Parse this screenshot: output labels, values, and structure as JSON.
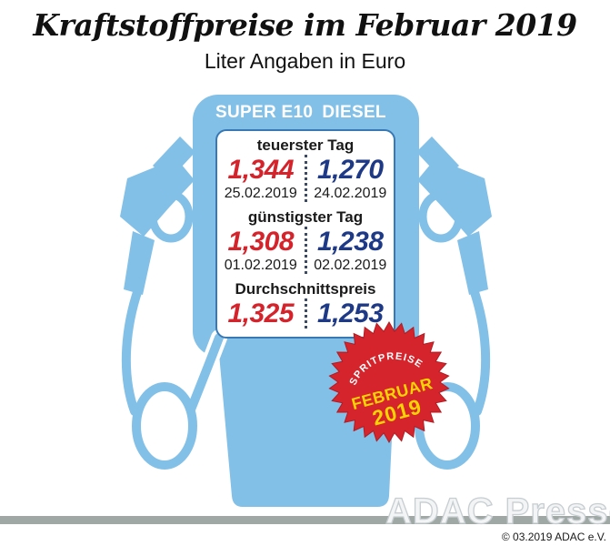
{
  "header": {
    "title": "Kraftstoffpreise im Februar 2019",
    "subtitle": "Liter Angaben in Euro"
  },
  "pump": {
    "fuel_columns": [
      "SUPER E10",
      "DIESEL"
    ],
    "sections": [
      {
        "label": "teuerster Tag",
        "values": [
          {
            "price": "1,344",
            "date": "25.02.2019"
          },
          {
            "price": "1,270",
            "date": "24.02.2019"
          }
        ]
      },
      {
        "label": "günstigster Tag",
        "values": [
          {
            "price": "1,308",
            "date": "01.02.2019"
          },
          {
            "price": "1,238",
            "date": "02.02.2019"
          }
        ]
      },
      {
        "label": "Durchschnittspreis",
        "values": [
          {
            "price": "1,325"
          },
          {
            "price": "1,253"
          }
        ]
      }
    ]
  },
  "badge": {
    "top": "SPRITPREISE",
    "middle": "FEBRUAR",
    "year": "2019"
  },
  "footer": {
    "watermark": "ADAC Presse",
    "copyright": "© 03.2019 ADAC e.V."
  },
  "colors": {
    "pump_blue": "#82C0E8",
    "panel_border": "#3878B4",
    "price_super_e10": "#D5232B",
    "price_diesel": "#1E3A86",
    "badge_red": "#D6242C",
    "badge_yellow": "#FFD402",
    "bar_gray": "#9FA8A4"
  },
  "chart_data": {
    "type": "table",
    "title": "Kraftstoffpreise im Februar 2019 (Liter Angaben in Euro)",
    "columns": [
      "SUPER E10",
      "DIESEL"
    ],
    "rows": [
      {
        "label": "teuerster Tag",
        "super_e10": 1.344,
        "super_e10_date": "25.02.2019",
        "diesel": 1.27,
        "diesel_date": "24.02.2019"
      },
      {
        "label": "günstigster Tag",
        "super_e10": 1.308,
        "super_e10_date": "01.02.2019",
        "diesel": 1.238,
        "diesel_date": "02.02.2019"
      },
      {
        "label": "Durchschnittspreis",
        "super_e10": 1.325,
        "diesel": 1.253
      }
    ]
  }
}
